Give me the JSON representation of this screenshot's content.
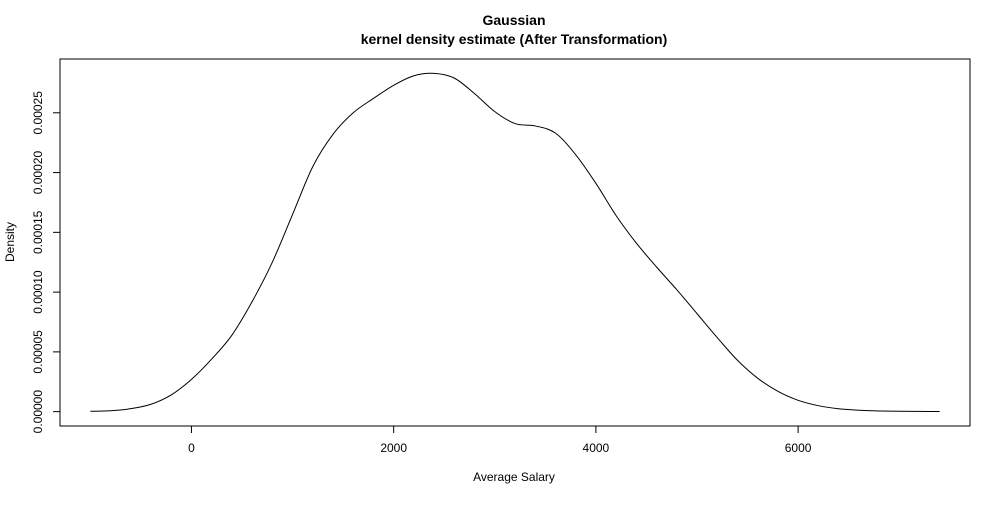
{
  "chart_data": {
    "type": "line",
    "title": "Gaussian",
    "subtitle": "kernel density estimate (After Transformation)",
    "xlabel": "Average Salary",
    "ylabel": "Density",
    "xlim": [
      -1300,
      7700
    ],
    "ylim": [
      -1.2e-05,
      0.000295
    ],
    "x_ticks": [
      {
        "value": 0,
        "label": "0"
      },
      {
        "value": 2000,
        "label": "2000"
      },
      {
        "value": 4000,
        "label": "4000"
      },
      {
        "value": 6000,
        "label": "6000"
      }
    ],
    "y_ticks": [
      {
        "value": 0,
        "label": "0.00000"
      },
      {
        "value": 5e-05,
        "label": "0.00005"
      },
      {
        "value": 0.0001,
        "label": "0.00010"
      },
      {
        "value": 0.00015,
        "label": "0.00015"
      },
      {
        "value": 0.0002,
        "label": "0.00020"
      },
      {
        "value": 0.00025,
        "label": "0.00025"
      }
    ],
    "grid": false,
    "series": [
      {
        "color": "#000000",
        "x": [
          -1000,
          -800,
          -600,
          -400,
          -200,
          0,
          200,
          400,
          600,
          800,
          1000,
          1200,
          1400,
          1600,
          1800,
          2000,
          2200,
          2400,
          2600,
          2800,
          3000,
          3200,
          3400,
          3600,
          3800,
          4000,
          4200,
          4400,
          4600,
          4800,
          5000,
          5200,
          5400,
          5600,
          5800,
          6000,
          6200,
          6400,
          6600,
          6800,
          7000,
          7200,
          7400
        ],
        "y": [
          3e-07,
          8e-07,
          2.5e-06,
          6.2e-06,
          1.4e-05,
          2.7e-05,
          4.4e-05,
          6.4e-05,
          9.2e-05,
          0.000125,
          0.000165,
          0.000205,
          0.000232,
          0.00025,
          0.000262,
          0.000273,
          0.000281,
          0.000283,
          0.000279,
          0.000266,
          0.000251,
          0.000241,
          0.000239,
          0.000233,
          0.000215,
          0.000191,
          0.000164,
          0.000141,
          0.000121,
          0.000102,
          8.2e-05,
          6.2e-05,
          4.3e-05,
          2.8e-05,
          1.7e-05,
          9.5e-06,
          5e-06,
          2.4e-06,
          1.2e-06,
          6e-07,
          3e-07,
          2e-07,
          1e-07
        ]
      }
    ]
  }
}
